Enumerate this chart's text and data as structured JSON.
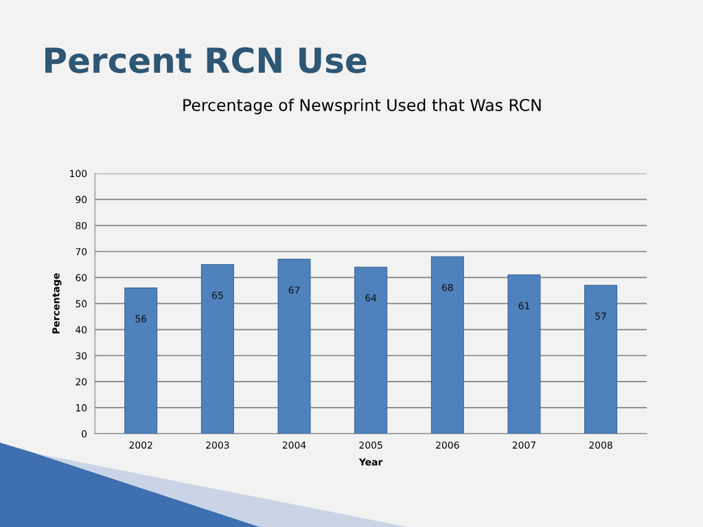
{
  "chart_data": {
    "type": "bar",
    "title": "Percent RCN Use",
    "subtitle": "Percentage of Newsprint Used that Was RCN",
    "xlabel": "Year",
    "ylabel": "Percentage",
    "categories": [
      "2002",
      "2003",
      "2004",
      "2005",
      "2006",
      "2007",
      "2008"
    ],
    "values": [
      56,
      65,
      67,
      64,
      68,
      61,
      57
    ],
    "color": "#4f81bd",
    "ylim": [
      0,
      100
    ],
    "yticks": [
      0,
      10,
      20,
      30,
      40,
      50,
      60,
      70,
      80,
      90,
      100
    ],
    "grid": "y",
    "data_labels": true
  }
}
